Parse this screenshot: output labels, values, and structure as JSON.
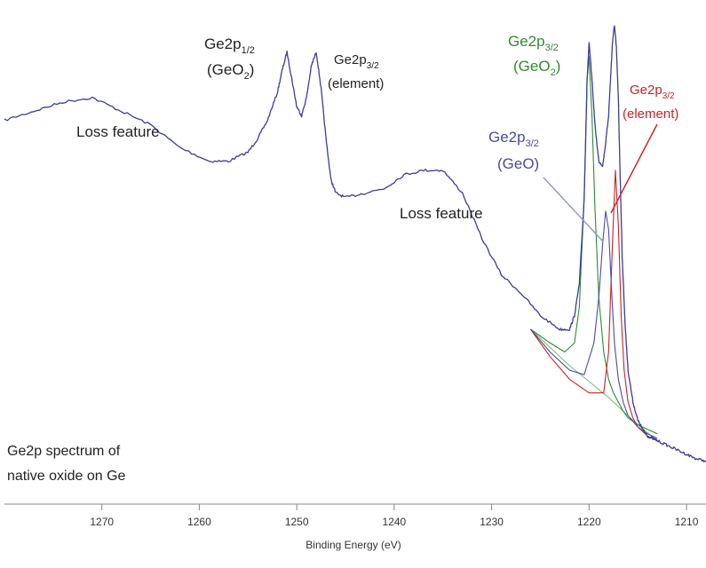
{
  "chart_data": {
    "type": "line",
    "xlabel": "Binding Energy (eV)",
    "ylabel": "",
    "xlim": [
      1280,
      1208
    ],
    "xticks": [
      1270,
      1260,
      1250,
      1240,
      1230,
      1220,
      1210
    ],
    "ylim": [
      0,
      100
    ],
    "grid": false,
    "legend": "none",
    "colors": {
      "envelope": "#3b3d96",
      "geo2": "#2e8b2e",
      "element": "#d02020",
      "geo": "#4a4aa6",
      "background": "#7fc07f",
      "sum": "#111111"
    },
    "series": [
      {
        "key": "spectrum",
        "x": [
          1280,
          1277,
          1274,
          1271,
          1268,
          1265,
          1262,
          1259,
          1257,
          1255,
          1254,
          1253,
          1252,
          1251.5,
          1251,
          1250.5,
          1250,
          1249.5,
          1249,
          1248.5,
          1248,
          1247.5,
          1247,
          1246.5,
          1246,
          1245,
          1243,
          1241,
          1239,
          1237,
          1235,
          1233,
          1231,
          1229,
          1227,
          1225,
          1223,
          1222,
          1221.5,
          1221,
          1220.5,
          1220.2,
          1220,
          1219.7,
          1219.4,
          1219,
          1218.6,
          1218.3,
          1218,
          1217.8,
          1217.6,
          1217.4,
          1217.2,
          1217,
          1216.8,
          1216.6,
          1216.3,
          1216,
          1215.5,
          1215,
          1214.5,
          1214,
          1213.5,
          1213,
          1212,
          1211,
          1210,
          1209,
          1208
        ],
        "y": [
          79,
          81,
          83,
          84,
          81,
          78,
          73,
          70,
          70,
          72,
          75,
          79,
          85,
          90,
          94,
          88,
          82,
          80,
          84,
          91,
          94,
          86,
          75,
          66,
          63,
          62,
          63,
          64,
          67,
          68,
          68,
          63,
          53,
          45,
          41,
          36,
          33,
          33,
          36,
          43,
          62,
          88,
          96,
          88,
          78,
          70,
          69,
          74,
          80,
          88,
          96,
          100,
          95,
          84,
          66,
          49,
          34,
          24,
          17,
          13,
          11,
          9.5,
          9,
          8.5,
          7.5,
          6.5,
          5.5,
          4.5,
          4
        ]
      },
      {
        "key": "geo2-fit",
        "x": [
          1226,
          1224,
          1222.5,
          1221.5,
          1221,
          1220.5,
          1220.2,
          1220,
          1219.7,
          1219.4,
          1219,
          1218.5,
          1218,
          1217.5,
          1217,
          1216.5,
          1216,
          1215,
          1214,
          1213
        ],
        "y": [
          33,
          30,
          28,
          30,
          38,
          62,
          88,
          93,
          80,
          60,
          40,
          28,
          22,
          19,
          17,
          15,
          13.5,
          12,
          11,
          10
        ]
      },
      {
        "key": "element-fit",
        "x": [
          1226,
          1224,
          1222,
          1220,
          1218.5,
          1218,
          1217.6,
          1217.3,
          1217,
          1216.7,
          1216.4,
          1216,
          1215.5,
          1215,
          1214.5,
          1214,
          1213
        ],
        "y": [
          33,
          27,
          22,
          19,
          19,
          28,
          52,
          68,
          56,
          36,
          24,
          17,
          13.5,
          11.5,
          10.5,
          9.5,
          8.5
        ]
      },
      {
        "key": "geo-fit",
        "x": [
          1226,
          1224,
          1222,
          1220.5,
          1219.5,
          1219,
          1218.6,
          1218.3,
          1218,
          1217.7,
          1217.4,
          1217,
          1216.5,
          1216,
          1215,
          1214,
          1213
        ],
        "y": [
          33,
          28,
          24,
          23,
          30,
          40,
          52,
          59,
          55,
          42,
          30,
          22,
          17,
          14,
          11.5,
          10,
          9
        ]
      },
      {
        "key": "background",
        "x": [
          1226,
          1222,
          1218,
          1215,
          1213
        ],
        "y": [
          33,
          25,
          18,
          12,
          8.5
        ]
      }
    ],
    "annotations": [
      {
        "key": "loss1",
        "text": "Loss feature"
      },
      {
        "key": "loss2",
        "text": "Loss feature"
      },
      {
        "key": "ge12-main",
        "text": "Ge2p",
        "sub": "1/2",
        "line2": "(GeO",
        "line2sub": "2",
        "line2end": ")"
      },
      {
        "key": "ge32-elem-left",
        "text": "Ge2p",
        "sub": "3/2",
        "line2": "(element)"
      },
      {
        "key": "ge32-geo2",
        "text": "Ge2p",
        "sub": "3/2",
        "line2": "(GeO",
        "line2sub": "2",
        "line2end": ")"
      },
      {
        "key": "ge32-elem-right",
        "text": "Ge2p",
        "sub": "3/2",
        "line2": "(element)"
      },
      {
        "key": "ge32-geo",
        "text": "Ge2p",
        "sub": "3/2",
        "line2": "(GeO)"
      }
    ],
    "corner_note": [
      "Ge2p spectrum of",
      "native oxide on Ge"
    ]
  }
}
